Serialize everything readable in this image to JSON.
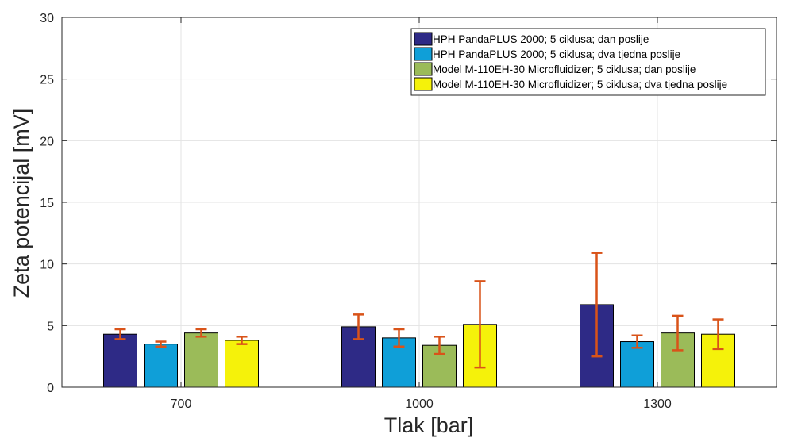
{
  "chart_data": {
    "type": "bar",
    "xlabel": "Tlak [bar]",
    "ylabel": "Zeta potencijal [mV]",
    "categories": [
      "700",
      "1000",
      "1300"
    ],
    "ylim": [
      0,
      30
    ],
    "yticks": [
      0,
      5,
      10,
      15,
      20,
      25,
      30
    ],
    "grid": true,
    "legend_position": "top-right",
    "error_bar_color": "#d95319",
    "series": [
      {
        "name": "HPH PandaPLUS 2000; 5 ciklusa; dan poslije",
        "color": "#2e2a86",
        "values": [
          4.3,
          4.9,
          6.7
        ],
        "errors": [
          0.4,
          1.0,
          4.2
        ]
      },
      {
        "name": "HPH PandaPLUS 2000; 5 ciklusa; dva tjedna poslije",
        "color": "#0f9fd8",
        "values": [
          3.5,
          4.0,
          3.7
        ],
        "errors": [
          0.2,
          0.7,
          0.5
        ]
      },
      {
        "name": "Model M-110EH-30 Microfluidizer; 5 ciklusa; dan poslije",
        "color": "#9bbb59",
        "values": [
          4.4,
          3.4,
          4.4
        ],
        "errors": [
          0.3,
          0.7,
          1.4
        ]
      },
      {
        "name": "Model M-110EH-30 Microfluidizer; 5 ciklusa; dva tjedna poslije",
        "color": "#f5f20a",
        "values": [
          3.8,
          5.1,
          4.3
        ],
        "errors": [
          0.3,
          3.5,
          1.2
        ]
      }
    ]
  }
}
